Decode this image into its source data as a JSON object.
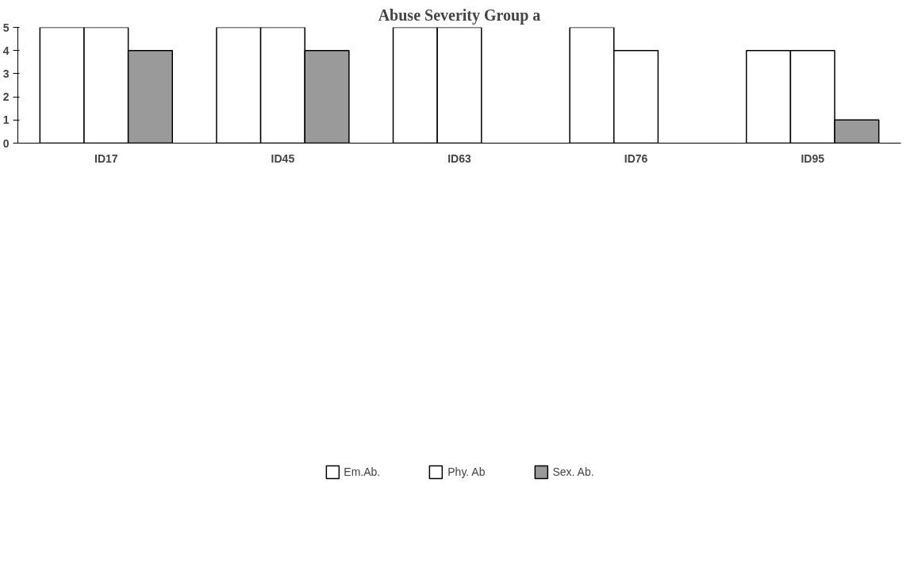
{
  "chart_data": {
    "type": "bar",
    "title": "Abuse Severity Group a",
    "categories": [
      "ID17",
      "ID45",
      "ID63",
      "ID76",
      "ID95"
    ],
    "series": [
      {
        "name": "Em.Ab.",
        "color": "#ffffff",
        "values": [
          5,
          5,
          5,
          5,
          4
        ]
      },
      {
        "name": "Phy. Ab",
        "color": "#ffffff",
        "values": [
          5,
          5,
          5,
          4,
          4
        ]
      },
      {
        "name": "Sex. Ab.",
        "color": "#9a9a9a",
        "values": [
          4,
          4,
          null,
          null,
          1
        ]
      }
    ],
    "ylim": [
      0,
      5
    ],
    "yticks": [
      0,
      1,
      2,
      3,
      4,
      5
    ],
    "grid": false,
    "legend": "bottom"
  }
}
